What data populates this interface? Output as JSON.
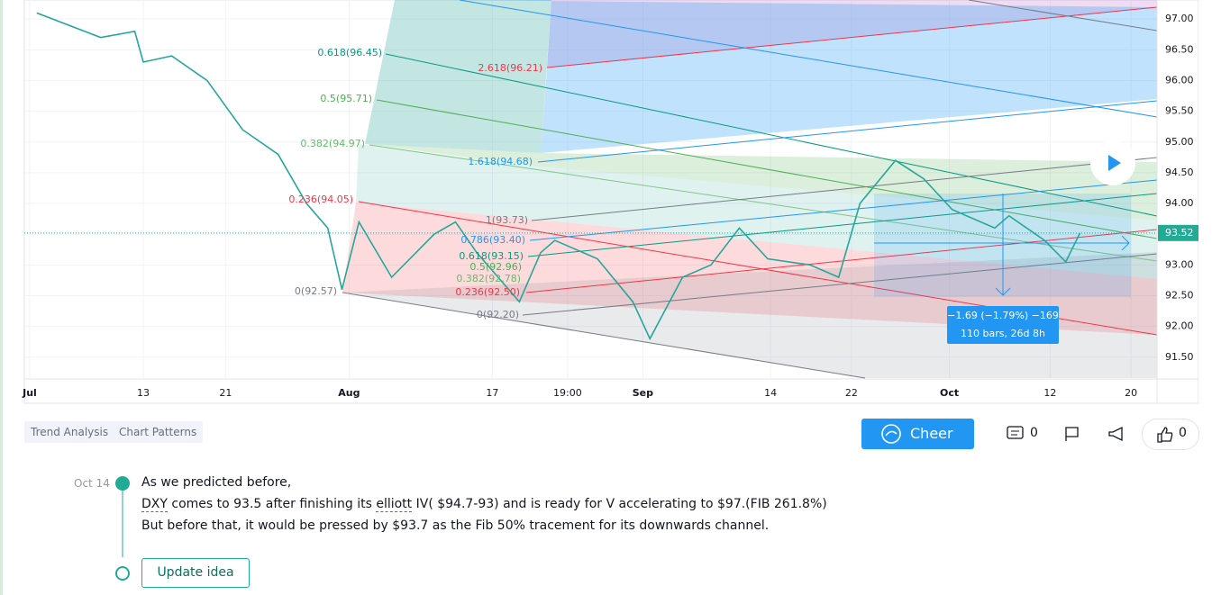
{
  "chart_data": {
    "type": "line",
    "x": [
      0.5,
      5,
      7.4,
      8,
      10,
      12.5,
      15,
      17.5,
      19.5,
      21,
      22,
      23.2,
      25.5,
      28.5,
      30,
      31.5,
      34.5,
      36,
      37,
      40,
      42.5,
      43.7,
      46,
      48,
      50,
      52,
      55,
      57,
      58.5,
      61,
      63,
      65,
      68,
      69,
      71.5,
      73,
      74
    ],
    "values": [
      97.1,
      96.7,
      96.8,
      96.3,
      96.4,
      96.0,
      95.2,
      94.8,
      94.0,
      93.6,
      92.6,
      93.7,
      92.8,
      93.5,
      93.7,
      93.2,
      92.4,
      93.2,
      93.4,
      93.1,
      92.4,
      91.8,
      92.8,
      93.0,
      93.6,
      93.1,
      93.0,
      92.8,
      94.0,
      94.7,
      94.4,
      93.9,
      93.6,
      93.8,
      93.4,
      93.05,
      93.52
    ],
    "color": "#26a69a",
    "ylim": [
      91.16,
      97.31
    ],
    "yticks": [
      {
        "value": 97,
        "label": "97.00"
      },
      {
        "value": 96.5,
        "label": "96.50"
      },
      {
        "value": 96,
        "label": "96.00"
      },
      {
        "value": 95.5,
        "label": "95.50"
      },
      {
        "value": 95,
        "label": "95.00"
      },
      {
        "value": 94.5,
        "label": "94.50"
      },
      {
        "value": 94,
        "label": "94.00"
      },
      {
        "value": 93.5,
        "label": "93.50"
      },
      {
        "value": 93,
        "label": "93.00"
      },
      {
        "value": 92.5,
        "label": "92.50"
      },
      {
        "value": 92,
        "label": "92.00"
      },
      {
        "value": 91.5,
        "label": "91.50"
      }
    ],
    "xlim": [
      -0.38,
      79.43
    ],
    "xticks": [
      {
        "value": 0,
        "label": "Jul"
      },
      {
        "value": 8,
        "label": "13"
      },
      {
        "value": 13.8,
        "label": "21"
      },
      {
        "value": 22.5,
        "label": "Aug"
      },
      {
        "value": 32.6,
        "label": "17"
      },
      {
        "value": 37.9,
        "label": "19:00"
      },
      {
        "value": 43.2,
        "label": "Sep"
      },
      {
        "value": 52.2,
        "label": "14"
      },
      {
        "value": 57.9,
        "label": "22"
      },
      {
        "value": 64.8,
        "label": "Oct"
      },
      {
        "value": 71.9,
        "label": "12"
      },
      {
        "value": 77.6,
        "label": "20"
      }
    ],
    "last_price": {
      "value": 93.52,
      "label": "93.52"
    },
    "annotations": [
      "0.618(96.45)",
      "0.5(95.71)",
      "0.382(94.97)",
      "0.236(94.05)",
      "0(92.57)",
      "2.618(96.21)",
      "1.618(94.68)",
      "1(93.73)",
      "0.786(93.40)",
      "0.618(93.15)",
      "0.5(92.96)",
      "0.382(92.78)",
      "0.236(92.50)",
      "0(92.20)",
      "−1.69 (−1.79%) −169",
      "110 bars, 26d 8h"
    ]
  },
  "tags": [
    "Trend Analysis",
    "Chart Patterns"
  ],
  "actions": {
    "cheer": "Cheer",
    "comments": "0",
    "likes": "0"
  },
  "update": {
    "date": "Oct 14",
    "lines": [
      "As we predicted before,",
      [
        "DXY",
        " comes to 93.5 after finishing its ",
        "elliott",
        " IV( $94.7-93) and is ready for V accelerating to $97.(FIB 261.8%)"
      ],
      "But before that, it would be pressed by $93.7 as the Fib 50% tracement for its downwards channel."
    ],
    "button": "Update idea"
  }
}
